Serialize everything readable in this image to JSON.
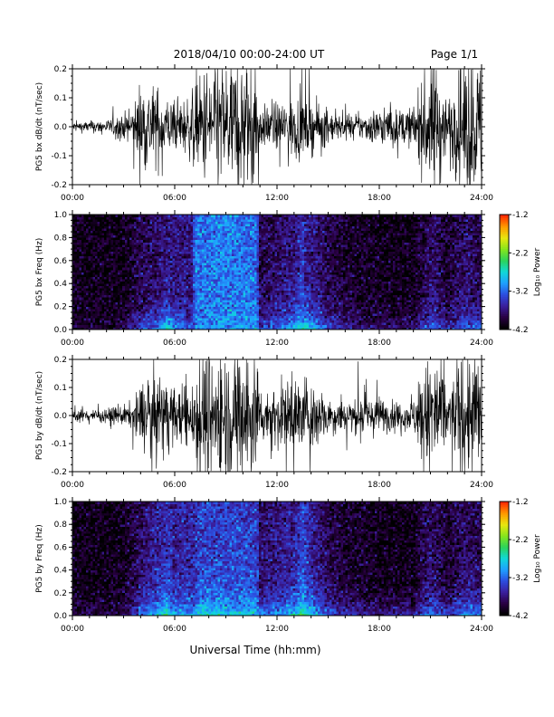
{
  "header": {
    "title": "2018/04/10   00:00-24:00 UT",
    "page": "Page 1/1"
  },
  "footer": {
    "xlabel": "Universal Time (hh:mm)"
  },
  "colorbar": {
    "ticks": [
      "-1.2",
      "-2.2",
      "-3.2",
      "-4.2"
    ],
    "label": "Log₁₀ Power",
    "colors": [
      "#000000",
      "#2a0044",
      "#3a1f9e",
      "#2c4ee0",
      "#1fa0ff",
      "#10d8d8",
      "#2cd35a",
      "#86e51c",
      "#e8e610",
      "#ff9a00",
      "#ff2a00"
    ]
  },
  "panels": [
    {
      "kind": "line",
      "ylabel": "PG5 bx dB/dt (nT/sec)",
      "yticks": [
        "0.2",
        "0.1",
        "0.0",
        "-0.1",
        "-0.2"
      ],
      "xticks": [
        "00:00",
        "06:00",
        "12:00",
        "18:00",
        "24:00"
      ]
    },
    {
      "kind": "spectrogram",
      "ylabel": "PG5 bx Freq (Hz)",
      "yticks": [
        "1.0",
        "0.8",
        "0.6",
        "0.4",
        "0.2",
        "0.0"
      ],
      "xticks": [
        "00:00",
        "06:00",
        "12:00",
        "18:00",
        "24:00"
      ]
    },
    {
      "kind": "line",
      "ylabel": "PG5 by dB/dt (nT/sec)",
      "yticks": [
        "0.2",
        "0.1",
        "0.0",
        "-0.1",
        "-0.2"
      ],
      "xticks": [
        "00:00",
        "06:00",
        "12:00",
        "18:00",
        "24:00"
      ]
    },
    {
      "kind": "spectrogram",
      "ylabel": "PG5 by Freq (Hz)",
      "yticks": [
        "1.0",
        "0.8",
        "0.6",
        "0.4",
        "0.2",
        "0.0"
      ],
      "xticks": [
        "00:00",
        "06:00",
        "12:00",
        "18:00",
        "24:00"
      ]
    }
  ],
  "chart_data": [
    {
      "type": "line",
      "ylabel": "PG5 bx dB/dt (nT/sec)",
      "ylim": [
        -0.2,
        0.2
      ],
      "xlim": [
        "00:00",
        "24:00"
      ],
      "x_hours": [
        0,
        2,
        3.5,
        4,
        5,
        6,
        7,
        8,
        9,
        10,
        10.8,
        11,
        12,
        13,
        14,
        15,
        16,
        17,
        18,
        19,
        20,
        21,
        21.5,
        22,
        23,
        24
      ],
      "amplitude": [
        0.015,
        0.02,
        0.05,
        0.14,
        0.12,
        0.07,
        0.1,
        0.2,
        0.2,
        0.2,
        0.2,
        0.06,
        0.07,
        0.1,
        0.08,
        0.05,
        0.03,
        0.04,
        0.06,
        0.05,
        0.06,
        0.2,
        0.2,
        0.08,
        0.2,
        0.2
      ]
    },
    {
      "type": "heatmap",
      "ylabel": "PG5 bx Freq (Hz)",
      "ylim": [
        0.0,
        1.0
      ],
      "xlim": [
        "00:00",
        "24:00"
      ],
      "colorbar_range": [
        -4.2,
        -1.2
      ],
      "x_hours": [
        0,
        3,
        4,
        5,
        5.5,
        6,
        7,
        7.2,
        9,
        10.8,
        11,
        12,
        13,
        13.5,
        14,
        15,
        16,
        18,
        20,
        21,
        21.5,
        22,
        23,
        24
      ],
      "log_power_low_freq": [
        -4.0,
        -3.9,
        -3.3,
        -3.1,
        -2.6,
        -3.0,
        -3.3,
        -3.1,
        -3.0,
        -3.0,
        -3.4,
        -3.2,
        -2.8,
        -2.5,
        -2.8,
        -3.3,
        -3.6,
        -3.8,
        -3.7,
        -3.2,
        -3.3,
        -3.6,
        -3.1,
        -3.2
      ],
      "log_power_high_freq": [
        -4.1,
        -4.1,
        -3.9,
        -3.8,
        -3.7,
        -3.7,
        -3.7,
        -3.2,
        -3.1,
        -3.2,
        -3.9,
        -3.8,
        -3.7,
        -3.5,
        -3.7,
        -3.9,
        -4.0,
        -4.1,
        -4.1,
        -3.8,
        -3.9,
        -4.0,
        -3.8,
        -3.9
      ]
    },
    {
      "type": "line",
      "ylabel": "PG5 by dB/dt (nT/sec)",
      "ylim": [
        -0.2,
        0.2
      ],
      "xlim": [
        "00:00",
        "24:00"
      ],
      "x_hours": [
        0,
        2,
        3.5,
        4,
        5,
        6,
        7,
        7.5,
        9,
        10,
        10.8,
        11,
        12,
        13,
        14,
        15,
        16,
        17,
        18,
        19,
        20,
        21,
        21.5,
        22,
        23,
        24
      ],
      "amplitude": [
        0.02,
        0.02,
        0.04,
        0.1,
        0.14,
        0.08,
        0.12,
        0.2,
        0.2,
        0.2,
        0.2,
        0.08,
        0.1,
        0.12,
        0.12,
        0.06,
        0.05,
        0.06,
        0.06,
        0.04,
        0.05,
        0.2,
        0.2,
        0.08,
        0.2,
        0.2
      ]
    },
    {
      "type": "heatmap",
      "ylabel": "PG5 by Freq (Hz)",
      "ylim": [
        0.0,
        1.0
      ],
      "xlim": [
        "00:00",
        "24:00"
      ],
      "colorbar_range": [
        -4.2,
        -1.2
      ],
      "x_hours": [
        0,
        3,
        4,
        5,
        5.5,
        6,
        7,
        7.5,
        9,
        10.8,
        11,
        12,
        13,
        13.5,
        14,
        15,
        16,
        18,
        20,
        21,
        21.5,
        22,
        23,
        24
      ],
      "log_power_low_freq": [
        -3.9,
        -3.9,
        -3.2,
        -2.8,
        -2.4,
        -2.9,
        -3.0,
        -2.6,
        -2.7,
        -2.8,
        -3.1,
        -3.0,
        -2.7,
        -2.4,
        -2.7,
        -3.2,
        -3.5,
        -3.7,
        -3.6,
        -3.1,
        -3.2,
        -3.5,
        -3.0,
        -3.1
      ],
      "log_power_high_freq": [
        -4.1,
        -4.1,
        -3.8,
        -3.6,
        -3.5,
        -3.6,
        -3.6,
        -3.4,
        -3.4,
        -3.4,
        -3.8,
        -3.7,
        -3.6,
        -3.4,
        -3.6,
        -3.9,
        -4.0,
        -4.1,
        -4.1,
        -3.8,
        -3.9,
        -4.0,
        -3.8,
        -3.9
      ]
    }
  ]
}
